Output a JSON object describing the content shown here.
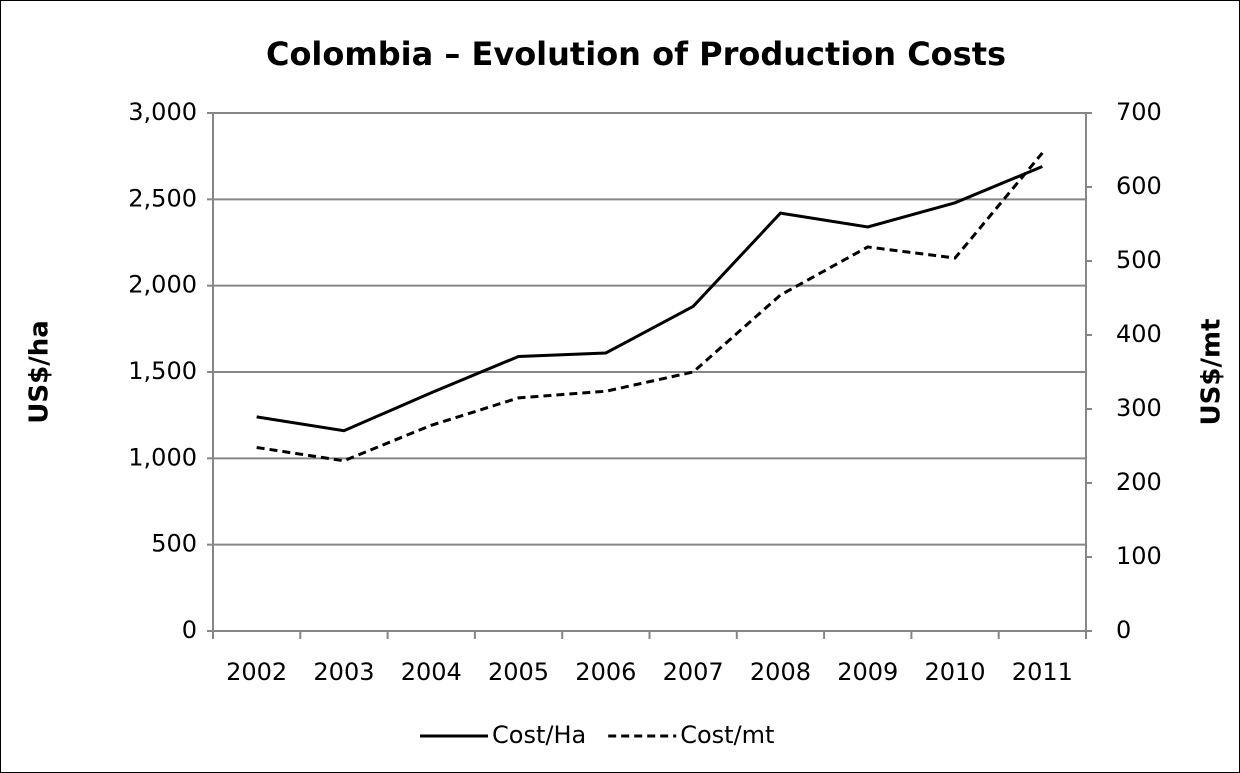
{
  "chart_data": {
    "type": "line",
    "title": "Colombia – Evolution of Production Costs",
    "ylabel": "US$/ha",
    "y2label": "US$/mt",
    "categories": [
      "2002",
      "2003",
      "2004",
      "2005",
      "2006",
      "2007",
      "2008",
      "2009",
      "2010",
      "2011"
    ],
    "series": [
      {
        "name": "Cost/Ha",
        "color": "#000000",
        "line_style": "solid",
        "axis": "y",
        "values": [
          1240,
          1160,
          1380,
          1590,
          1610,
          1880,
          2420,
          2340,
          2480,
          2690
        ]
      },
      {
        "name": "Cost/mt",
        "color": "#000000",
        "line_style": "dashed",
        "axis": "y2",
        "values": [
          248,
          230,
          278,
          315,
          324,
          350,
          454,
          519,
          504,
          646
        ]
      }
    ],
    "ylim": [
      0,
      3000
    ],
    "yticks": [
      0,
      500,
      {
        "value": 1000,
        "label": "1,000"
      },
      {
        "value": 1500,
        "label": "1,500"
      },
      {
        "value": 2000,
        "label": "2,000"
      },
      {
        "value": 2500,
        "label": "2,500"
      },
      {
        "value": 3000,
        "label": "3,000"
      }
    ],
    "y2lim": [
      0,
      700
    ],
    "y2ticks": [
      0,
      100,
      200,
      300,
      400,
      500,
      600,
      700
    ],
    "grid": true,
    "legend": "bottom"
  }
}
